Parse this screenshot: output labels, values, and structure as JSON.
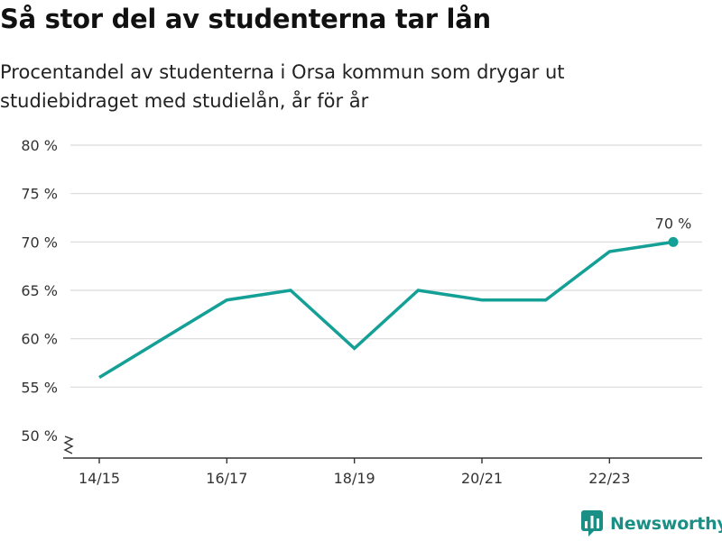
{
  "colors": {
    "line": "#14a096",
    "grid": "#d9d9d9",
    "axis": "#333333",
    "brand": "#1a8f86"
  },
  "chart_data": {
    "type": "line",
    "title": "Så stor del av studenterna tar lån",
    "subtitle": "Procentandel av studenterna i Orsa kommun som drygar ut studiebidraget med studielån, år för år",
    "x": [
      "14/15",
      "15/16",
      "16/17",
      "17/18",
      "18/19",
      "19/20",
      "20/21",
      "21/22",
      "22/23",
      "23/24"
    ],
    "x_tick_labels": [
      "14/15",
      "16/17",
      "18/19",
      "20/21",
      "22/23"
    ],
    "series": [
      {
        "values": [
          56,
          60,
          64,
          65,
          59,
          65,
          64,
          64,
          69,
          70
        ]
      }
    ],
    "ylim": [
      50,
      80
    ],
    "y_tick_labels": [
      "80 %",
      "75 %",
      "70 %",
      "65 %",
      "60 %",
      "55 %",
      "50 %"
    ],
    "y_ticks": [
      80,
      75,
      70,
      65,
      60,
      55,
      50
    ],
    "annotation": {
      "text": "70 %",
      "x": "23/24",
      "value": 70
    },
    "axis_break": true,
    "grid": true
  },
  "brand": {
    "name": "Newsworthy",
    "icon": "bar-chart-logo-icon"
  }
}
